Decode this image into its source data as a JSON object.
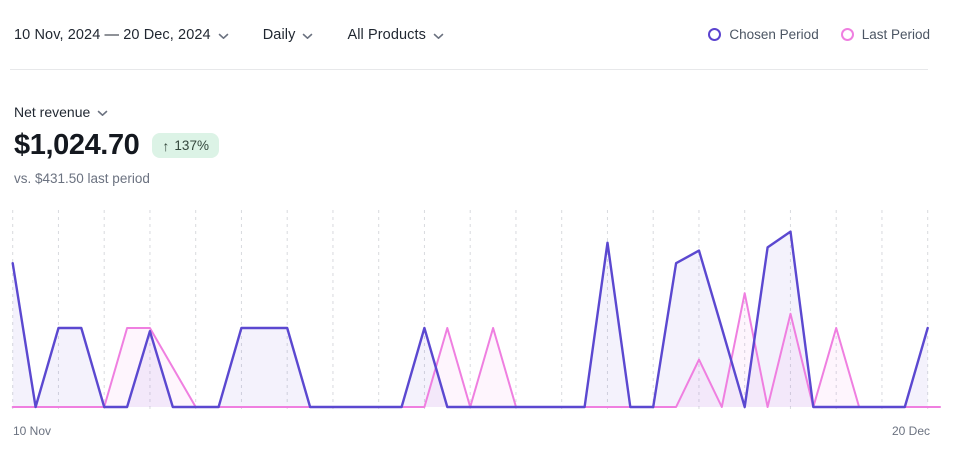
{
  "toolbar": {
    "date_range": "10 Nov, 2024 — 20 Dec, 2024",
    "granularity": "Daily",
    "product_filter": "All Products"
  },
  "legend": {
    "chosen": {
      "label": "Chosen Period",
      "color": "#5b43cf"
    },
    "last": {
      "label": "Last Period",
      "color": "#ef7fe0"
    }
  },
  "metric": {
    "name": "Net revenue",
    "value": "$1,024.70",
    "change_arrow": "↑",
    "change": "137%",
    "change_direction": "up",
    "comparison": "vs. $431.50 last period",
    "badge_bg": "#dcf3e6"
  },
  "chart_data": {
    "type": "line",
    "title": "Net revenue, daily, 10 Nov 2024 – 20 Dec 2024 vs last period",
    "x_unit": "day",
    "points": 41,
    "x_labels_visible": [
      "10 Nov",
      "20 Dec"
    ],
    "grid": "vertical dashed line every 2 days, no y-axis",
    "ylim": [
      0,
      120
    ],
    "legend_position": "top-right",
    "series": [
      {
        "name": "Chosen Period",
        "color": "#5b48d0",
        "fill": "rgba(95,75,210,0.07)",
        "total": "$1,024.70",
        "values": [
          91,
          0,
          50,
          50,
          0,
          0,
          48,
          0,
          0,
          0,
          50,
          50,
          50,
          0,
          0,
          0,
          0,
          0,
          50,
          0,
          0,
          0,
          0,
          0,
          0,
          0,
          104,
          0,
          0,
          91,
          99,
          50,
          0,
          101,
          111,
          0,
          0,
          0,
          0,
          0,
          50
        ]
      },
      {
        "name": "Last Period",
        "color": "#ef7fe0",
        "fill": "rgba(239,127,224,0.08)",
        "total": "$431.50",
        "values": [
          0,
          0,
          0,
          0,
          0,
          50,
          50,
          25,
          0,
          0,
          0,
          0,
          0,
          0,
          0,
          0,
          0,
          0,
          0,
          50,
          0,
          50,
          0,
          0,
          0,
          0,
          0,
          0,
          0,
          0,
          30,
          0,
          72,
          0,
          59,
          0,
          50,
          0,
          0,
          0,
          0
        ]
      }
    ],
    "note": "values estimated in USD; no y-axis labels shown"
  }
}
